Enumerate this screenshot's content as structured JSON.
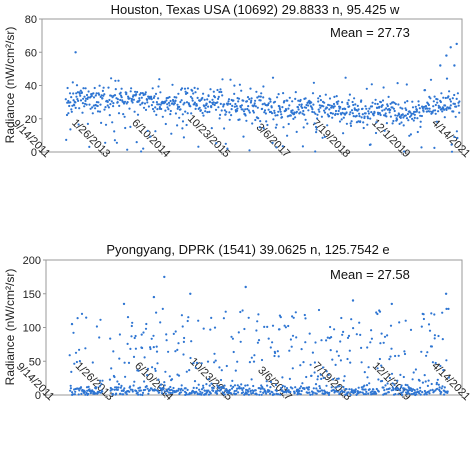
{
  "chart_data": [
    {
      "type": "scatter",
      "title": "Houston, Texas USA (10692) 29.8833 n, 95.425 w",
      "ylabel": "Radiance (nW/cm²/sr)",
      "annotation": "Mean = 27.73",
      "ylim": [
        0,
        80
      ],
      "yticks": [
        "0",
        "20",
        "40",
        "60",
        "80"
      ],
      "xlim": [
        "2011-09-14",
        "2021-04-14"
      ],
      "xticks": [
        "9/14/2011",
        "1/26/2013",
        "6/10/2014",
        "10/23/2015",
        "3/6/2017",
        "7/19/2018",
        "12/1/2019",
        "4/14/2021"
      ],
      "grid": false,
      "point_color": "#2e75d2",
      "mean": 27.73,
      "data_start": "2012-04-01",
      "data_end": "2021-03-25",
      "trend": [
        [
          "2012-04-01",
          30
        ],
        [
          "2012-12-01",
          31
        ],
        [
          "2013-05-01",
          32
        ],
        [
          "2014-06-01",
          29
        ],
        [
          "2015-06-01",
          30
        ],
        [
          "2016-06-01",
          28
        ],
        [
          "2017-03-01",
          26
        ],
        [
          "2018-01-01",
          27
        ],
        [
          "2018-10-01",
          24
        ],
        [
          "2019-06-01",
          25
        ],
        [
          "2020-06-01",
          24
        ],
        [
          "2020-11-01",
          29
        ],
        [
          "2021-03-25",
          28
        ]
      ],
      "spread": 4,
      "outlier_rate": 0.18,
      "outlier_range": [
        0,
        45
      ],
      "highlights": [
        [
          "2012-06-20",
          60
        ],
        [
          "2020-10-15",
          52
        ],
        [
          "2020-12-05",
          58
        ],
        [
          "2021-01-10",
          63
        ],
        [
          "2021-03-01",
          65
        ],
        [
          "2021-02-10",
          52
        ]
      ]
    },
    {
      "type": "scatter",
      "title": "Pyongyang, DPRK (1541) 39.0625 n, 125.7542 e",
      "ylabel": "Radiance (nW/cm²/sr)",
      "annotation": "Mean = 27.58",
      "ylim": [
        0,
        200
      ],
      "yticks": [
        "0",
        "50",
        "100",
        "150",
        "200"
      ],
      "xlim": [
        "2011-09-14",
        "2021-04-14"
      ],
      "xticks": [
        "9/14/2011",
        "1/26/2013",
        "6/10/2014",
        "10/23/2015",
        "3/6/2017",
        "7/19/2018",
        "12/1/2019",
        "4/14/2021"
      ],
      "grid": false,
      "point_color": "#2e75d2",
      "mean": 27.58,
      "data_start": "2012-04-01",
      "data_end": "2020-12-25",
      "gap": [
        "2013-01-05",
        "2013-03-01"
      ],
      "base_level": 5,
      "spread": 4,
      "outlier_rate": 0.4,
      "outlier_range": [
        10,
        130
      ],
      "highlights": [
        [
          "2012-04-20",
          105
        ],
        [
          "2013-07-01",
          135
        ],
        [
          "2014-03-10",
          145
        ],
        [
          "2014-06-05",
          175
        ],
        [
          "2015-01-10",
          150
        ],
        [
          "2016-04-20",
          160
        ],
        [
          "2018-10-10",
          140
        ],
        [
          "2020-12-01",
          150
        ],
        [
          "2019-09-01",
          135
        ]
      ]
    }
  ]
}
